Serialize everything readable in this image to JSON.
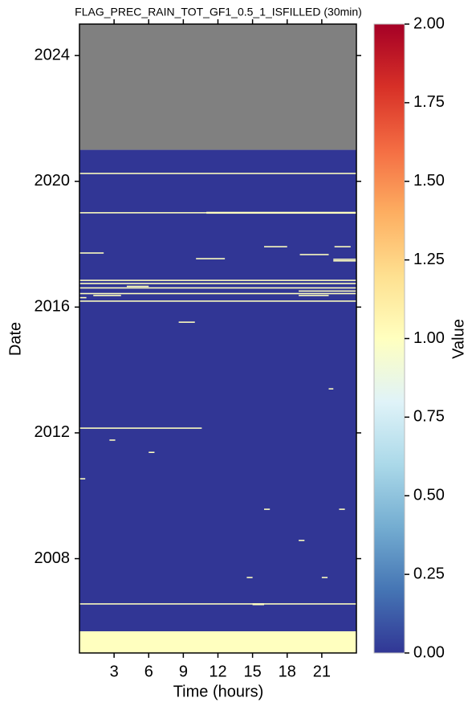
{
  "chart_data": {
    "type": "heatmap",
    "title": "FLAG_PREC_RAIN_TOT_GF1_0.5_1_ISFILLED (30min)",
    "xlabel": "Time (hours)",
    "ylabel": "Date",
    "colorbar_label": "Value",
    "xlim": [
      0,
      24
    ],
    "xticks": [
      3,
      6,
      9,
      12,
      15,
      18,
      21
    ],
    "ylim": [
      2005,
      2025
    ],
    "yticks": [
      2008,
      2012,
      2016,
      2020,
      2024
    ],
    "clim": [
      0,
      2
    ],
    "cticks": [
      {
        "value": 0,
        "label": "0.00"
      },
      {
        "value": 0.25,
        "label": "0.25"
      },
      {
        "value": 0.5,
        "label": "0.50"
      },
      {
        "value": 0.75,
        "label": "0.75"
      },
      {
        "value": 1,
        "label": "1.00"
      },
      {
        "value": 1.25,
        "label": "1.25"
      },
      {
        "value": 1.5,
        "label": "1.50"
      },
      {
        "value": 1.75,
        "label": "1.75"
      },
      {
        "value": 2,
        "label": "2.00"
      }
    ],
    "colorscale": [
      "#313695",
      "#4575b4",
      "#74add1",
      "#abd9e9",
      "#e0f3f8",
      "#ffffbf",
      "#fee090",
      "#fdae61",
      "#f46d43",
      "#d73027",
      "#a50026"
    ],
    "missing_color": "#808080",
    "cells": [
      {
        "x": [
          0,
          24
        ],
        "y": [
          2021,
          2025
        ],
        "value": null
      },
      {
        "x": [
          0,
          24
        ],
        "y": [
          2005.69,
          2021
        ],
        "value": 0
      },
      {
        "x": [
          0,
          24
        ],
        "y": [
          2005,
          2005.69
        ],
        "value": 1
      },
      {
        "x": [
          0,
          24
        ],
        "y": [
          2020.23,
          2020.27
        ],
        "value": 1
      },
      {
        "x": [
          0,
          24
        ],
        "y": [
          2018.98,
          2019.02
        ],
        "value": 1
      },
      {
        "x": [
          11,
          24
        ],
        "y": [
          2018.97,
          2019.03
        ],
        "value": 1
      },
      {
        "x": [
          16,
          18
        ],
        "y": [
          2017.9,
          2017.94
        ],
        "value": 1
      },
      {
        "x": [
          22.1,
          23.5
        ],
        "y": [
          2017.9,
          2017.94
        ],
        "value": 1
      },
      {
        "x": [
          0,
          2.1
        ],
        "y": [
          2017.7,
          2017.74
        ],
        "value": 1
      },
      {
        "x": [
          19.1,
          21.6
        ],
        "y": [
          2017.65,
          2017.69
        ],
        "value": 1
      },
      {
        "x": [
          10.1,
          12.6
        ],
        "y": [
          2017.52,
          2017.56
        ],
        "value": 1
      },
      {
        "x": [
          22,
          24
        ],
        "y": [
          2017.5,
          2017.54
        ],
        "value": 1
      },
      {
        "x": [
          22,
          24
        ],
        "y": [
          2017.45,
          2017.49
        ],
        "value": 1
      },
      {
        "x": [
          0,
          24
        ],
        "y": [
          2016.83,
          2016.87
        ],
        "value": 1
      },
      {
        "x": [
          0,
          24
        ],
        "y": [
          2016.73,
          2016.77
        ],
        "value": 1
      },
      {
        "x": [
          4.1,
          6
        ],
        "y": [
          2016.64,
          2016.68
        ],
        "value": 1
      },
      {
        "x": [
          0,
          24
        ],
        "y": [
          2016.59,
          2016.63
        ],
        "value": 1
      },
      {
        "x": [
          19,
          24
        ],
        "y": [
          2016.49,
          2016.53
        ],
        "value": 1
      },
      {
        "x": [
          0,
          24
        ],
        "y": [
          2016.41,
          2016.45
        ],
        "value": 1
      },
      {
        "x": [
          1.2,
          3.6
        ],
        "y": [
          2016.35,
          2016.39
        ],
        "value": 1
      },
      {
        "x": [
          19,
          21.6
        ],
        "y": [
          2016.35,
          2016.39
        ],
        "value": 1
      },
      {
        "x": [
          0,
          0.6
        ],
        "y": [
          2016.28,
          2016.32
        ],
        "value": 1
      },
      {
        "x": [
          0,
          24
        ],
        "y": [
          2016.17,
          2016.21
        ],
        "value": 1
      },
      {
        "x": [
          8.6,
          10
        ],
        "y": [
          2015.5,
          2015.54
        ],
        "value": 1
      },
      {
        "x": [
          21.6,
          22
        ],
        "y": [
          2013.38,
          2013.42
        ],
        "value": 1
      },
      {
        "x": [
          0,
          10.6
        ],
        "y": [
          2012.13,
          2012.17
        ],
        "value": 1
      },
      {
        "x": [
          2.6,
          3.1
        ],
        "y": [
          2011.75,
          2011.79
        ],
        "value": 1
      },
      {
        "x": [
          6,
          6.5
        ],
        "y": [
          2011.36,
          2011.4
        ],
        "value": 1
      },
      {
        "x": [
          0,
          0.5
        ],
        "y": [
          2010.52,
          2010.56
        ],
        "value": 1
      },
      {
        "x": [
          16,
          16.5
        ],
        "y": [
          2009.55,
          2009.59
        ],
        "value": 1
      },
      {
        "x": [
          22.5,
          23
        ],
        "y": [
          2009.55,
          2009.59
        ],
        "value": 1
      },
      {
        "x": [
          19,
          19.5
        ],
        "y": [
          2008.56,
          2008.6
        ],
        "value": 1
      },
      {
        "x": [
          14.5,
          15
        ],
        "y": [
          2007.38,
          2007.42
        ],
        "value": 1
      },
      {
        "x": [
          21,
          21.5
        ],
        "y": [
          2007.38,
          2007.42
        ],
        "value": 1
      },
      {
        "x": [
          0,
          24
        ],
        "y": [
          2006.54,
          2006.58
        ],
        "value": 1
      },
      {
        "x": [
          15,
          16
        ],
        "y": [
          2006.52,
          2006.58
        ],
        "value": 1
      }
    ]
  }
}
